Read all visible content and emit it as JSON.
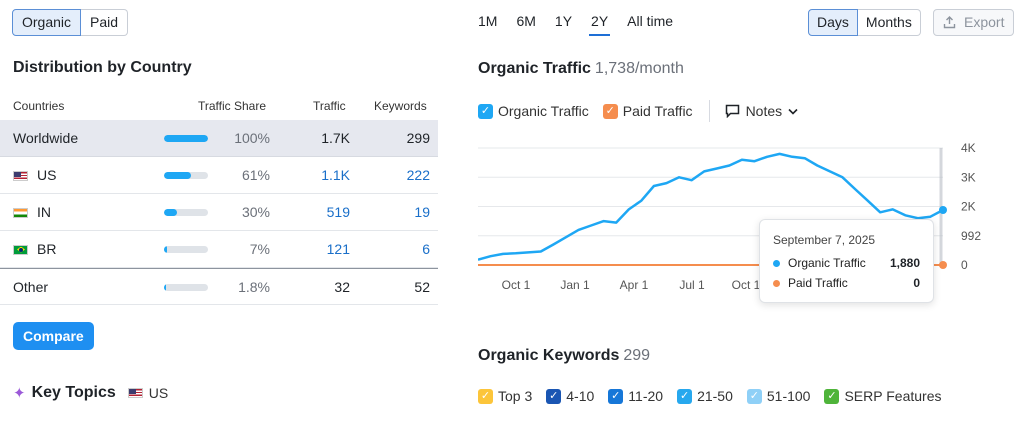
{
  "segment": {
    "organic": "Organic",
    "paid": "Paid"
  },
  "distribution": {
    "title": "Distribution by Country",
    "columns": {
      "countries": "Countries",
      "share": "Traffic Share",
      "traffic": "Traffic",
      "keywords": "Keywords"
    },
    "rows": [
      {
        "name": "Worldwide",
        "flag": "",
        "share": "100%",
        "share_value": 1.0,
        "traffic": "1.7K",
        "keywords": "299"
      },
      {
        "name": "US",
        "flag": "us-flag",
        "share": "61%",
        "share_value": 0.61,
        "traffic": "1.1K",
        "keywords": "222"
      },
      {
        "name": "IN",
        "flag": "in-flag",
        "share": "30%",
        "share_value": 0.3,
        "traffic": "519",
        "keywords": "19"
      },
      {
        "name": "BR",
        "flag": "br-flag",
        "share": "7%",
        "share_value": 0.07,
        "traffic": "121",
        "keywords": "6"
      },
      {
        "name": "Other",
        "flag": "",
        "share": "1.8%",
        "share_value": 0.018,
        "traffic": "32",
        "keywords": "52"
      }
    ]
  },
  "compare_label": "Compare",
  "key_topics": {
    "title": "Key Topics",
    "country": "US"
  },
  "ranges": [
    "1M",
    "6M",
    "1Y",
    "2Y",
    "All time"
  ],
  "active_range": "2Y",
  "granularity": {
    "days": "Days",
    "months": "Months"
  },
  "export_label": "Export",
  "traffic_header": {
    "title": "Organic Traffic",
    "value": "1,738/month"
  },
  "chart_legend": {
    "organic": "Organic Traffic",
    "paid": "Paid Traffic",
    "notes": "Notes"
  },
  "colors": {
    "organic": "#1ea7f4",
    "paid": "#f58d4e",
    "accent": "#1e6fd6"
  },
  "chart_data": {
    "type": "line",
    "x_ticks": [
      "Oct 1",
      "Jan 1",
      "Apr 1",
      "Jul 1",
      "Oct 1"
    ],
    "y_ticks": [
      "4K",
      "3K",
      "2K",
      "992",
      "0"
    ],
    "ylim": [
      0,
      4000
    ],
    "series": [
      {
        "name": "Organic Traffic",
        "color": "#1ea7f4",
        "points": [
          [
            0,
            180
          ],
          [
            10,
            300
          ],
          [
            20,
            380
          ],
          [
            30,
            400
          ],
          [
            40,
            430
          ],
          [
            50,
            460
          ],
          [
            60,
            700
          ],
          [
            70,
            950
          ],
          [
            80,
            1200
          ],
          [
            90,
            1350
          ],
          [
            100,
            1500
          ],
          [
            110,
            1450
          ],
          [
            120,
            1900
          ],
          [
            130,
            2200
          ],
          [
            140,
            2700
          ],
          [
            150,
            2800
          ],
          [
            160,
            3000
          ],
          [
            170,
            2900
          ],
          [
            180,
            3200
          ],
          [
            190,
            3300
          ],
          [
            200,
            3400
          ],
          [
            210,
            3600
          ],
          [
            220,
            3550
          ],
          [
            230,
            3700
          ],
          [
            240,
            3800
          ],
          [
            250,
            3700
          ],
          [
            260,
            3650
          ],
          [
            270,
            3400
          ],
          [
            280,
            3200
          ],
          [
            290,
            3000
          ],
          [
            300,
            2600
          ],
          [
            310,
            2200
          ],
          [
            320,
            1800
          ],
          [
            330,
            1900
          ],
          [
            340,
            1700
          ],
          [
            350,
            1600
          ],
          [
            360,
            1650
          ],
          [
            370,
            1880
          ]
        ]
      },
      {
        "name": "Paid Traffic",
        "color": "#f58d4e",
        "points": [
          [
            0,
            0
          ],
          [
            370,
            0
          ]
        ]
      }
    ]
  },
  "tooltip": {
    "date": "September 7, 2025",
    "organic_label": "Organic Traffic",
    "organic_value": "1,880",
    "paid_label": "Paid Traffic",
    "paid_value": "0"
  },
  "keywords_header": {
    "title": "Organic Keywords",
    "value": "299"
  },
  "keyword_legend": [
    {
      "label": "Top 3",
      "color": "#fcc53a"
    },
    {
      "label": "4-10",
      "color": "#1a56b3"
    },
    {
      "label": "11-20",
      "color": "#1677d8"
    },
    {
      "label": "21-50",
      "color": "#27a8ee"
    },
    {
      "label": "51-100",
      "color": "#8fd0f7"
    },
    {
      "label": "SERP Features",
      "color": "#4fb43a"
    }
  ]
}
